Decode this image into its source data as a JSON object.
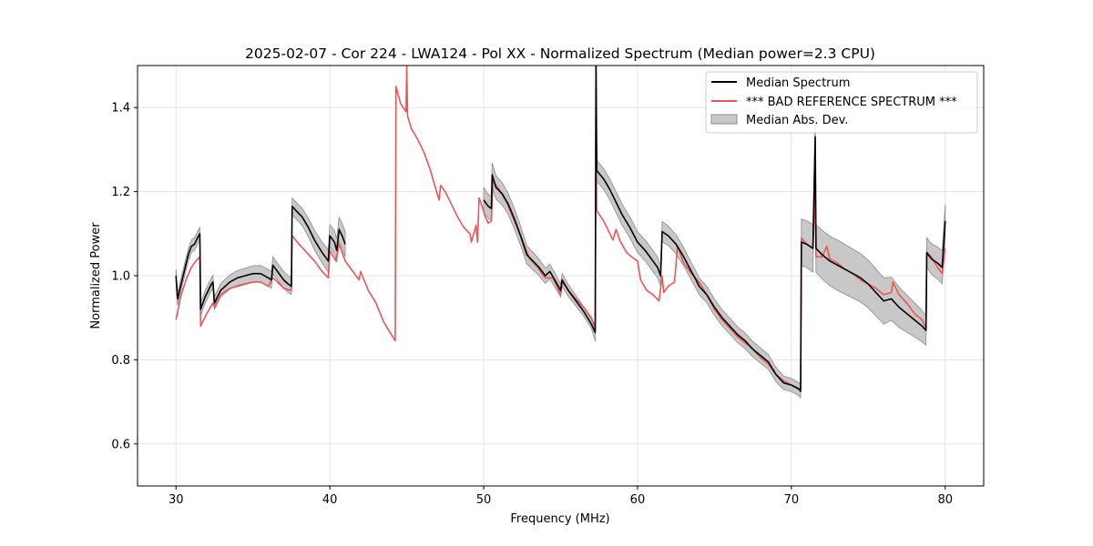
{
  "chart_data": {
    "type": "line",
    "title": "2025-02-07 - Cor 224 - LWA124 - Pol XX - Normalized Spectrum (Median power=2.3 CPU)",
    "xlabel": "Frequency (MHz)",
    "ylabel": "Normalized Power",
    "xlim": [
      27.5,
      82.5
    ],
    "ylim": [
      0.5,
      1.5
    ],
    "xticks": [
      30,
      40,
      50,
      60,
      70,
      80
    ],
    "yticks": [
      0.6,
      0.8,
      1.0,
      1.2,
      1.4
    ],
    "xtick_labels": [
      "30",
      "40",
      "50",
      "60",
      "70",
      "80"
    ],
    "ytick_labels": [
      "0.6",
      "0.8",
      "1.0",
      "1.2",
      "1.4"
    ],
    "grid": true,
    "legend_position": "top-right",
    "legend": {
      "median_label": "Median Spectrum",
      "reference_label": "*** BAD REFERENCE SPECTRUM ***",
      "mad_label": "Median Abs. Dev."
    },
    "colors": {
      "median": "#000000",
      "reference": "#ee5555",
      "mad_fill": "#c8c8c8",
      "mad_edge": "#8c8c8c",
      "grid": "#e5e5e5"
    },
    "median_segments": [
      [
        [
          30.0,
          1.0
        ],
        [
          30.1,
          0.945
        ],
        [
          30.4,
          0.99
        ],
        [
          30.8,
          1.05
        ],
        [
          31.0,
          1.07
        ],
        [
          31.2,
          1.075
        ],
        [
          31.4,
          1.09
        ],
        [
          31.55,
          1.1
        ],
        [
          31.6,
          0.92
        ],
        [
          31.9,
          0.95
        ],
        [
          32.3,
          0.98
        ],
        [
          32.4,
          0.985
        ],
        [
          32.5,
          0.935
        ],
        [
          32.9,
          0.965
        ],
        [
          33.5,
          0.985
        ],
        [
          34.0,
          0.995
        ],
        [
          34.5,
          1.0
        ],
        [
          35.0,
          1.005
        ],
        [
          35.5,
          1.005
        ],
        [
          36.0,
          0.995
        ],
        [
          36.2,
          0.99
        ],
        [
          36.3,
          1.025
        ],
        [
          36.6,
          1.01
        ],
        [
          37.0,
          0.99
        ],
        [
          37.3,
          0.98
        ],
        [
          37.5,
          0.975
        ],
        [
          37.55,
          1.165
        ],
        [
          37.8,
          1.155
        ],
        [
          38.2,
          1.14
        ],
        [
          38.6,
          1.115
        ],
        [
          39.0,
          1.085
        ],
        [
          39.5,
          1.055
        ],
        [
          39.9,
          1.035
        ],
        [
          40.0,
          1.095
        ],
        [
          40.3,
          1.08
        ],
        [
          40.45,
          1.06
        ],
        [
          40.6,
          1.11
        ],
        [
          40.8,
          1.095
        ],
        [
          41.0,
          1.075
        ]
      ],
      [
        [
          50.0,
          1.18
        ],
        [
          50.3,
          1.165
        ],
        [
          50.5,
          1.16
        ],
        [
          50.55,
          1.24
        ],
        [
          50.8,
          1.21
        ],
        [
          51.2,
          1.195
        ],
        [
          51.6,
          1.17
        ],
        [
          52.0,
          1.135
        ],
        [
          52.4,
          1.095
        ],
        [
          52.8,
          1.05
        ],
        [
          53.2,
          1.035
        ],
        [
          53.6,
          1.02
        ],
        [
          54.0,
          1.0
        ],
        [
          54.3,
          1.01
        ],
        [
          54.7,
          0.985
        ],
        [
          55.0,
          0.965
        ],
        [
          55.1,
          0.99
        ],
        [
          55.5,
          0.965
        ],
        [
          56.0,
          0.94
        ],
        [
          56.5,
          0.915
        ],
        [
          57.0,
          0.885
        ],
        [
          57.25,
          0.865
        ],
        [
          57.3,
          1.5
        ],
        [
          57.35,
          1.25
        ],
        [
          57.8,
          1.23
        ],
        [
          58.2,
          1.205
        ],
        [
          58.6,
          1.175
        ],
        [
          59.0,
          1.145
        ],
        [
          59.5,
          1.115
        ],
        [
          60.0,
          1.08
        ],
        [
          60.5,
          1.06
        ],
        [
          61.0,
          1.035
        ],
        [
          61.3,
          1.02
        ],
        [
          61.5,
          1.0
        ],
        [
          61.6,
          1.105
        ],
        [
          62.0,
          1.095
        ],
        [
          62.5,
          1.075
        ],
        [
          63.0,
          1.045
        ],
        [
          63.5,
          1.01
        ],
        [
          63.8,
          0.99
        ],
        [
          64.0,
          0.975
        ],
        [
          64.5,
          0.955
        ],
        [
          65.0,
          0.925
        ],
        [
          65.5,
          0.9
        ],
        [
          66.0,
          0.88
        ],
        [
          66.5,
          0.86
        ],
        [
          67.0,
          0.845
        ],
        [
          67.5,
          0.825
        ],
        [
          68.0,
          0.81
        ],
        [
          68.5,
          0.795
        ],
        [
          69.0,
          0.765
        ],
        [
          69.5,
          0.745
        ],
        [
          70.0,
          0.74
        ],
        [
          70.5,
          0.73
        ],
        [
          70.6,
          0.725
        ],
        [
          70.65,
          1.08
        ],
        [
          71.0,
          1.075
        ],
        [
          71.4,
          1.065
        ],
        [
          71.55,
          1.33
        ],
        [
          71.6,
          1.065
        ],
        [
          72.0,
          1.05
        ],
        [
          72.5,
          1.035
        ],
        [
          73.0,
          1.025
        ],
        [
          73.5,
          1.015
        ],
        [
          74.0,
          1.005
        ],
        [
          74.5,
          0.995
        ],
        [
          75.0,
          0.98
        ],
        [
          75.5,
          0.96
        ],
        [
          76.0,
          0.94
        ],
        [
          76.5,
          0.945
        ],
        [
          77.0,
          0.925
        ],
        [
          77.5,
          0.91
        ],
        [
          78.0,
          0.895
        ],
        [
          78.5,
          0.88
        ],
        [
          78.75,
          0.87
        ],
        [
          78.8,
          1.055
        ],
        [
          79.1,
          1.04
        ],
        [
          79.5,
          1.03
        ],
        [
          79.8,
          1.02
        ],
        [
          80.0,
          1.13
        ]
      ]
    ],
    "reference_series": [
      [
        30.0,
        0.895
      ],
      [
        30.3,
        0.95
      ],
      [
        30.7,
        0.995
      ],
      [
        31.0,
        1.02
      ],
      [
        31.3,
        1.035
      ],
      [
        31.55,
        1.045
      ],
      [
        31.6,
        0.88
      ],
      [
        32.0,
        0.91
      ],
      [
        32.4,
        0.935
      ],
      [
        32.5,
        0.925
      ],
      [
        32.9,
        0.955
      ],
      [
        33.5,
        0.97
      ],
      [
        34.0,
        0.975
      ],
      [
        34.5,
        0.98
      ],
      [
        35.0,
        0.985
      ],
      [
        35.5,
        0.985
      ],
      [
        36.0,
        0.975
      ],
      [
        36.3,
        0.995
      ],
      [
        36.6,
        0.985
      ],
      [
        37.0,
        0.97
      ],
      [
        37.5,
        0.965
      ],
      [
        37.55,
        1.095
      ],
      [
        38.0,
        1.075
      ],
      [
        38.5,
        1.055
      ],
      [
        39.0,
        1.035
      ],
      [
        39.5,
        1.01
      ],
      [
        39.9,
        0.995
      ],
      [
        40.0,
        1.06
      ],
      [
        40.4,
        1.035
      ],
      [
        40.6,
        1.075
      ],
      [
        41.0,
        1.035
      ],
      [
        41.5,
        1.01
      ],
      [
        41.9,
        0.99
      ],
      [
        42.0,
        1.01
      ],
      [
        42.5,
        0.965
      ],
      [
        43.0,
        0.935
      ],
      [
        43.5,
        0.89
      ],
      [
        44.0,
        0.86
      ],
      [
        44.25,
        0.845
      ],
      [
        44.3,
        1.45
      ],
      [
        44.6,
        1.41
      ],
      [
        44.95,
        1.39
      ],
      [
        45.0,
        1.5
      ],
      [
        45.05,
        1.38
      ],
      [
        45.3,
        1.35
      ],
      [
        45.7,
        1.325
      ],
      [
        46.1,
        1.295
      ],
      [
        46.5,
        1.255
      ],
      [
        46.9,
        1.205
      ],
      [
        47.1,
        1.18
      ],
      [
        47.2,
        1.215
      ],
      [
        47.5,
        1.2
      ],
      [
        47.9,
        1.17
      ],
      [
        48.3,
        1.14
      ],
      [
        48.7,
        1.115
      ],
      [
        49.1,
        1.1
      ],
      [
        49.2,
        1.08
      ],
      [
        49.5,
        1.12
      ],
      [
        49.6,
        1.08
      ],
      [
        49.7,
        1.185
      ],
      [
        49.9,
        1.165
      ],
      [
        50.1,
        1.14
      ],
      [
        50.3,
        1.125
      ],
      [
        50.5,
        1.13
      ],
      [
        50.6,
        1.225
      ],
      [
        51.0,
        1.205
      ],
      [
        51.5,
        1.175
      ],
      [
        52.0,
        1.13
      ],
      [
        52.5,
        1.085
      ],
      [
        53.0,
        1.04
      ],
      [
        53.5,
        1.02
      ],
      [
        54.0,
        0.995
      ],
      [
        54.5,
        0.995
      ],
      [
        55.0,
        0.955
      ],
      [
        55.1,
        0.985
      ],
      [
        55.5,
        0.965
      ],
      [
        56.0,
        0.945
      ],
      [
        56.5,
        0.925
      ],
      [
        57.0,
        0.9
      ],
      [
        57.25,
        0.875
      ],
      [
        57.3,
        1.5
      ],
      [
        57.35,
        1.155
      ],
      [
        57.8,
        1.13
      ],
      [
        58.2,
        1.1
      ],
      [
        58.4,
        1.085
      ],
      [
        58.6,
        1.11
      ],
      [
        58.9,
        1.08
      ],
      [
        59.3,
        1.055
      ],
      [
        59.6,
        1.045
      ],
      [
        60.0,
        1.035
      ],
      [
        60.2,
        0.99
      ],
      [
        60.6,
        0.965
      ],
      [
        61.0,
        0.955
      ],
      [
        61.4,
        0.94
      ],
      [
        61.6,
        1.0
      ],
      [
        61.7,
        0.96
      ],
      [
        62.0,
        0.975
      ],
      [
        62.4,
        0.985
      ],
      [
        62.6,
        1.07
      ],
      [
        63.0,
        1.03
      ],
      [
        63.5,
        1.005
      ],
      [
        64.0,
        0.985
      ],
      [
        64.5,
        0.955
      ],
      [
        65.0,
        0.92
      ],
      [
        65.5,
        0.895
      ],
      [
        66.0,
        0.875
      ],
      [
        66.5,
        0.855
      ],
      [
        67.0,
        0.84
      ],
      [
        67.5,
        0.825
      ],
      [
        68.0,
        0.805
      ],
      [
        68.5,
        0.79
      ],
      [
        69.0,
        0.765
      ],
      [
        69.5,
        0.75
      ],
      [
        70.0,
        0.74
      ],
      [
        70.6,
        0.73
      ],
      [
        70.65,
        1.09
      ],
      [
        71.0,
        1.075
      ],
      [
        71.4,
        1.065
      ],
      [
        71.55,
        1.21
      ],
      [
        71.6,
        1.045
      ],
      [
        72.0,
        1.045
      ],
      [
        72.3,
        1.07
      ],
      [
        72.5,
        1.04
      ],
      [
        73.0,
        1.03
      ],
      [
        73.5,
        1.015
      ],
      [
        74.0,
        1.005
      ],
      [
        74.5,
        0.99
      ],
      [
        75.0,
        0.98
      ],
      [
        75.5,
        0.97
      ],
      [
        76.0,
        0.955
      ],
      [
        76.5,
        0.96
      ],
      [
        76.6,
        0.985
      ],
      [
        77.0,
        0.955
      ],
      [
        77.5,
        0.935
      ],
      [
        78.0,
        0.91
      ],
      [
        78.5,
        0.895
      ],
      [
        78.75,
        0.875
      ],
      [
        78.8,
        1.055
      ],
      [
        79.1,
        1.045
      ],
      [
        79.5,
        1.02
      ],
      [
        79.8,
        1.005
      ],
      [
        80.0,
        1.065
      ]
    ],
    "mad_halfwidth": [
      [
        30.0,
        0.015
      ],
      [
        32.0,
        0.015
      ],
      [
        36.0,
        0.02
      ],
      [
        38.0,
        0.02
      ],
      [
        41.0,
        0.03
      ],
      [
        50.0,
        0.03
      ],
      [
        57.0,
        0.01
      ],
      [
        57.35,
        0.025
      ],
      [
        61.0,
        0.025
      ],
      [
        64.0,
        0.02
      ],
      [
        68.0,
        0.018
      ],
      [
        70.6,
        0.015
      ],
      [
        70.65,
        0.055
      ],
      [
        73.0,
        0.06
      ],
      [
        76.0,
        0.055
      ],
      [
        78.8,
        0.035
      ],
      [
        80.0,
        0.04
      ]
    ]
  }
}
